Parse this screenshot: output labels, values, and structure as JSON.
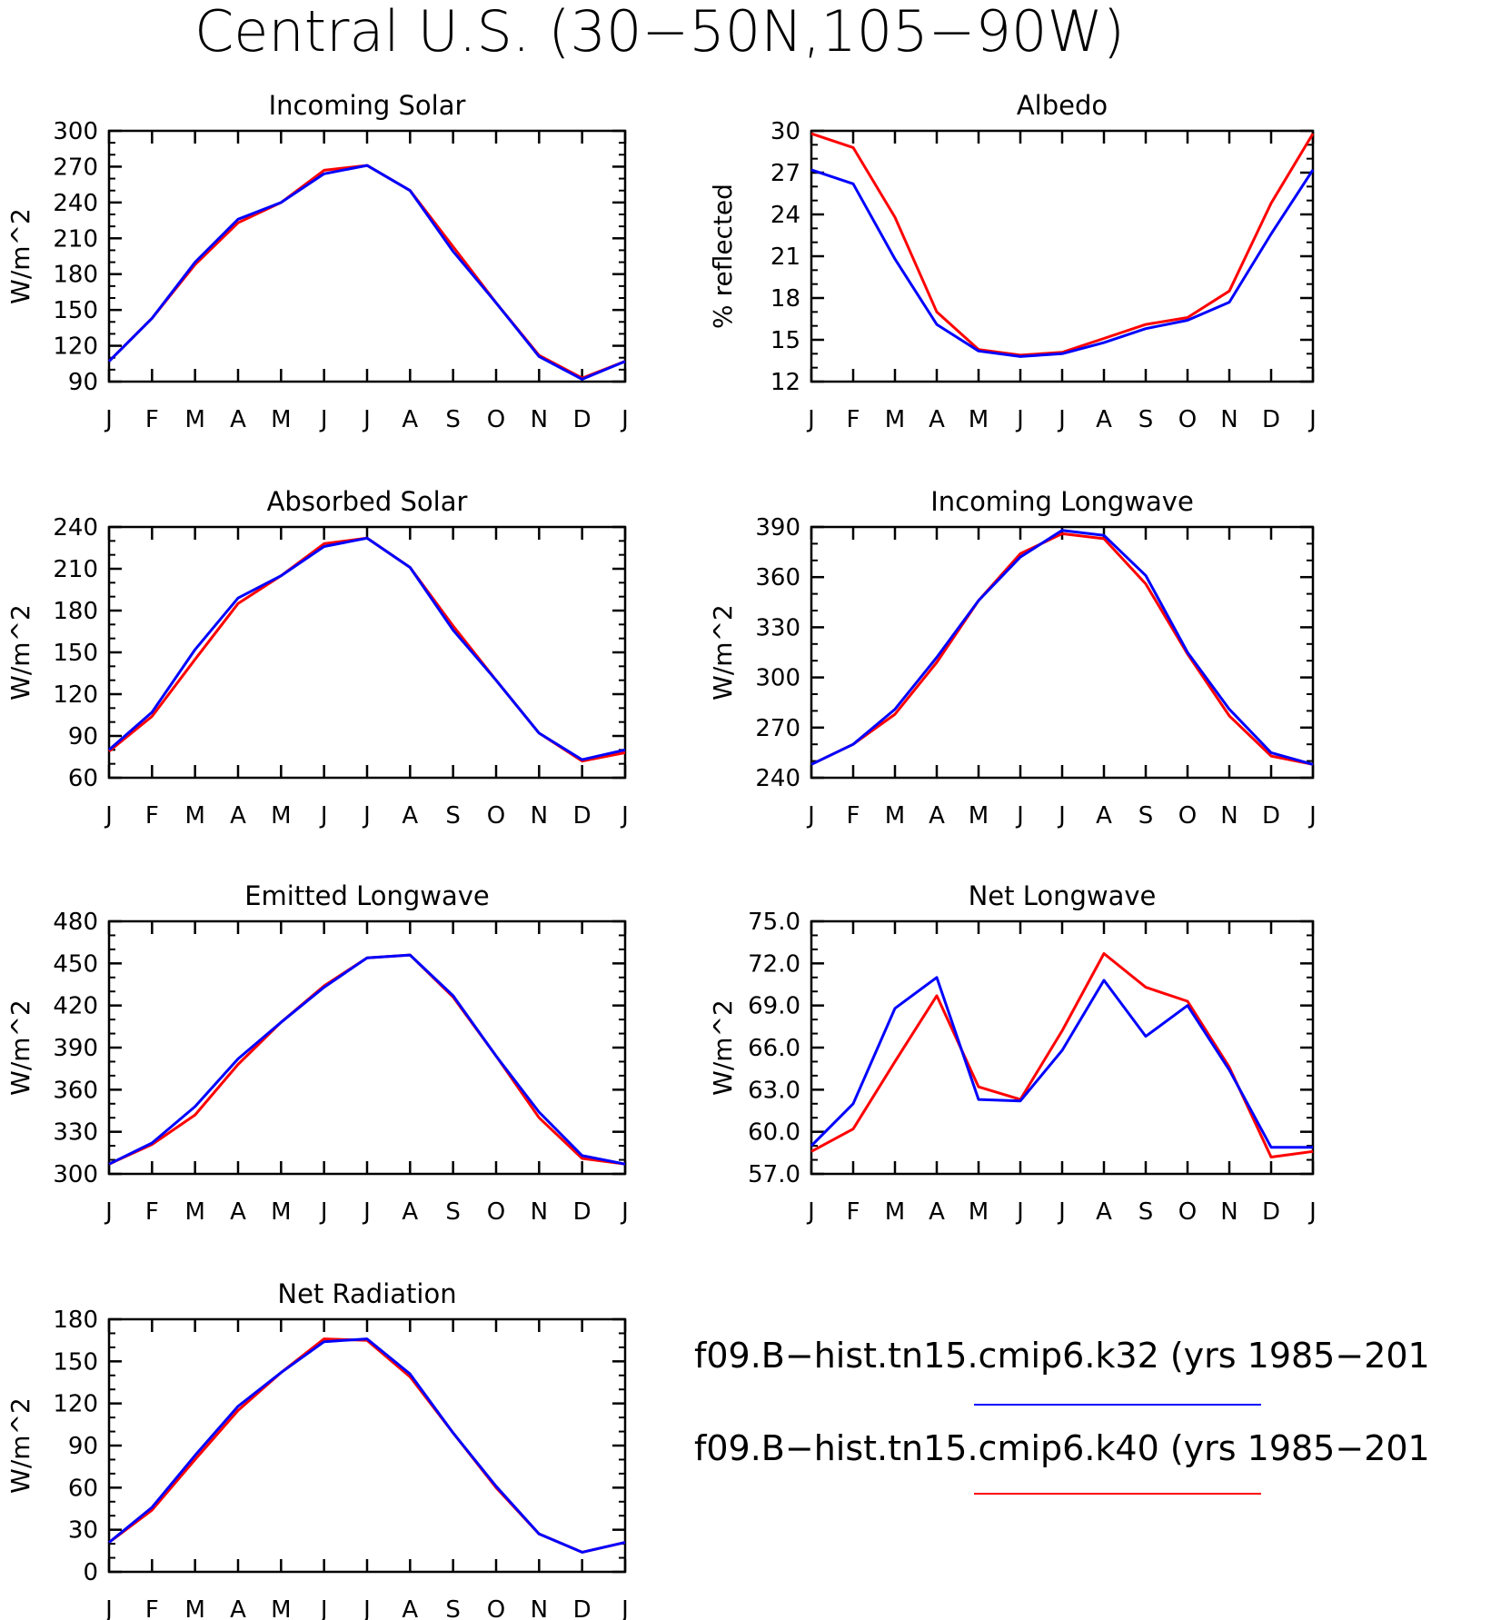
{
  "title": "Central U.S. (30−50N,105−90W)",
  "months": [
    "J",
    "F",
    "M",
    "A",
    "M",
    "J",
    "J",
    "A",
    "S",
    "O",
    "N",
    "D",
    "J"
  ],
  "colors": {
    "k32": "#0000ff",
    "k40": "#ff0000"
  },
  "legend": [
    {
      "label": "f09.B−hist.tn15.cmip6.k32 (yrs 1985−201",
      "color": "#0000ff"
    },
    {
      "label": "f09.B−hist.tn15.cmip6.k40 (yrs 1985−201",
      "color": "#ff0000"
    }
  ],
  "chart_data": [
    {
      "type": "line",
      "title": "Incoming Solar",
      "ylabel": "W/m^2",
      "ylim": [
        90,
        300
      ],
      "yticks": [
        "90",
        "120",
        "150",
        "180",
        "210",
        "240",
        "270",
        "300"
      ],
      "series": [
        {
          "key": "k32",
          "values": [
            107,
            143,
            190,
            226,
            240,
            264,
            271,
            250,
            199,
            156,
            111,
            92,
            107
          ]
        },
        {
          "key": "k40",
          "values": [
            107,
            143,
            188,
            223,
            240,
            267,
            271,
            250,
            203,
            156,
            112,
            93,
            107
          ]
        }
      ]
    },
    {
      "type": "line",
      "title": "Albedo",
      "ylabel": "% reflected",
      "ylim": [
        12,
        30
      ],
      "yticks": [
        "12",
        "15",
        "18",
        "21",
        "24",
        "27",
        "30"
      ],
      "series": [
        {
          "key": "k32",
          "values": [
            27.2,
            26.2,
            20.8,
            16.1,
            14.2,
            13.8,
            14.0,
            14.8,
            15.8,
            16.4,
            17.7,
            22.6,
            27.2
          ]
        },
        {
          "key": "k40",
          "values": [
            29.8,
            28.8,
            23.8,
            17.0,
            14.3,
            13.9,
            14.1,
            15.1,
            16.1,
            16.6,
            18.5,
            24.8,
            29.8
          ]
        }
      ]
    },
    {
      "type": "line",
      "title": "Absorbed Solar",
      "ylabel": "W/m^2",
      "ylim": [
        60,
        240
      ],
      "yticks": [
        "60",
        "90",
        "120",
        "150",
        "180",
        "210",
        "240"
      ],
      "series": [
        {
          "key": "k32",
          "values": [
            80,
            107,
            152,
            189,
            205,
            226,
            232,
            211,
            166,
            130,
            92,
            73,
            80
          ]
        },
        {
          "key": "k40",
          "values": [
            79,
            104,
            145,
            185,
            205,
            228,
            232,
            211,
            169,
            130,
            92,
            72,
            78
          ]
        }
      ]
    },
    {
      "type": "line",
      "title": "Incoming Longwave",
      "ylabel": "W/m^2",
      "ylim": [
        240,
        390
      ],
      "yticks": [
        "240",
        "270",
        "300",
        "330",
        "360",
        "390"
      ],
      "series": [
        {
          "key": "k32",
          "values": [
            248,
            260,
            281,
            312,
            346,
            372,
            388,
            385,
            361,
            315,
            281,
            255,
            248
          ]
        },
        {
          "key": "k40",
          "values": [
            248,
            260,
            278,
            309,
            346,
            374,
            386,
            383,
            356,
            314,
            277,
            253,
            248
          ]
        }
      ]
    },
    {
      "type": "line",
      "title": "Emitted Longwave",
      "ylabel": "W/m^2",
      "ylim": [
        300,
        480
      ],
      "yticks": [
        "300",
        "330",
        "360",
        "390",
        "420",
        "450",
        "480"
      ],
      "series": [
        {
          "key": "k32",
          "values": [
            307,
            322,
            348,
            382,
            408,
            433,
            454,
            456,
            427,
            384,
            344,
            313,
            307
          ]
        },
        {
          "key": "k40",
          "values": [
            307,
            321,
            342,
            378,
            408,
            434,
            454,
            456,
            426,
            384,
            340,
            311,
            307
          ]
        }
      ]
    },
    {
      "type": "line",
      "title": "Net Longwave",
      "ylabel": "W/m^2",
      "ylim": [
        57.0,
        75.0
      ],
      "yticks": [
        "57.0",
        "60.0",
        "63.0",
        "66.0",
        "69.0",
        "72.0",
        "75.0"
      ],
      "series": [
        {
          "key": "k32",
          "values": [
            59.0,
            62.0,
            68.8,
            71.0,
            62.3,
            62.2,
            65.8,
            70.8,
            66.8,
            69.0,
            64.4,
            58.9,
            58.9
          ]
        },
        {
          "key": "k40",
          "values": [
            58.6,
            60.2,
            65.0,
            69.7,
            63.2,
            62.3,
            67.2,
            72.7,
            70.3,
            69.3,
            64.6,
            58.2,
            58.6
          ]
        }
      ]
    },
    {
      "type": "line",
      "title": "Net Radiation",
      "ylabel": "W/m^2",
      "ylim": [
        0,
        180
      ],
      "yticks": [
        "0",
        "30",
        "60",
        "90",
        "120",
        "150",
        "180"
      ],
      "series": [
        {
          "key": "k32",
          "values": [
            21,
            46,
            83,
            118,
            142,
            164,
            166,
            141,
            99,
            61,
            27,
            14,
            21
          ]
        },
        {
          "key": "k40",
          "values": [
            21,
            44,
            80,
            115,
            142,
            166,
            165,
            139,
            99,
            60,
            27,
            14,
            21
          ]
        }
      ]
    }
  ]
}
